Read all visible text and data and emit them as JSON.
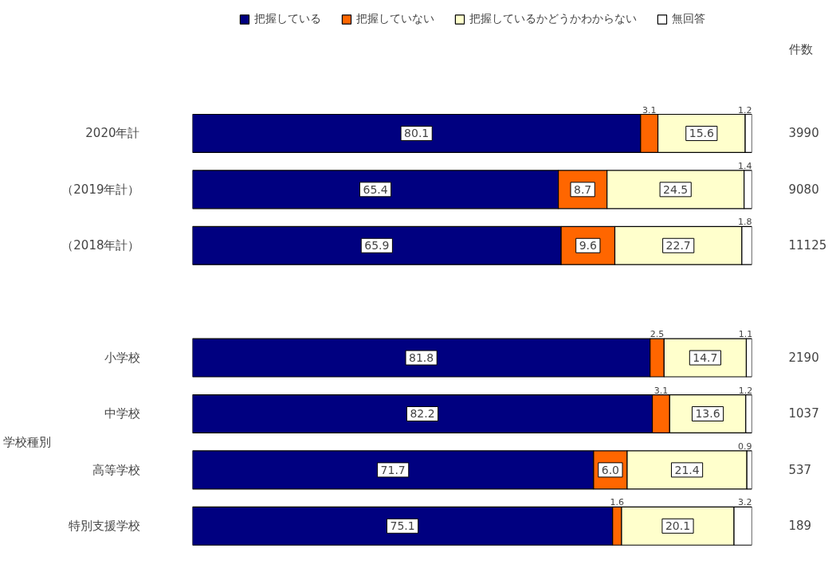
{
  "chart_data": {
    "type": "bar",
    "orientation": "horizontal",
    "stacked": true,
    "legend": "top",
    "grid": false,
    "tick_labels": "y",
    "xlim": [
      0,
      100
    ],
    "categories": [
      "2020年計",
      "（2019年計）",
      "（2018年計）",
      null,
      "小学校",
      "中学校",
      "高等学校",
      "特別支援学校"
    ],
    "series": [
      {
        "name": "把握している",
        "color": "#000080",
        "values": [
          80.1,
          65.4,
          65.9,
          null,
          81.8,
          82.2,
          71.7,
          75.1
        ],
        "value_labels": [
          "80.1",
          "65.4",
          "65.9",
          null,
          "81.8",
          "82.2",
          "71.7",
          "75.1"
        ]
      },
      {
        "name": "把握していない",
        "color": "#ff6600",
        "values": [
          3.1,
          8.7,
          9.6,
          null,
          2.5,
          3.1,
          6.0,
          1.6
        ],
        "value_labels": [
          "3.1",
          "8.7",
          "9.6",
          null,
          "2.5",
          "3.1",
          "6.0",
          "1.6"
        ]
      },
      {
        "name": "把握しているかどうかわからない",
        "color": "#ffffcc",
        "values": [
          15.6,
          24.5,
          22.7,
          null,
          14.7,
          13.6,
          21.4,
          20.1
        ],
        "value_labels": [
          "15.6",
          "24.5",
          "22.7",
          null,
          "14.7",
          "13.6",
          "21.4",
          "20.1"
        ]
      },
      {
        "name": "無回答",
        "color": "#ffffff",
        "values": [
          1.2,
          1.4,
          1.8,
          null,
          1.1,
          1.2,
          0.9,
          3.2
        ],
        "value_labels": [
          "1.2",
          "1.4",
          "1.8",
          null,
          "1.1",
          "1.2",
          "0.9",
          "3.2"
        ]
      }
    ],
    "annotations": [
      "件数",
      "学校種別",
      "3990",
      "9080",
      "11125",
      "2190",
      "1037",
      "537",
      "189"
    ]
  }
}
